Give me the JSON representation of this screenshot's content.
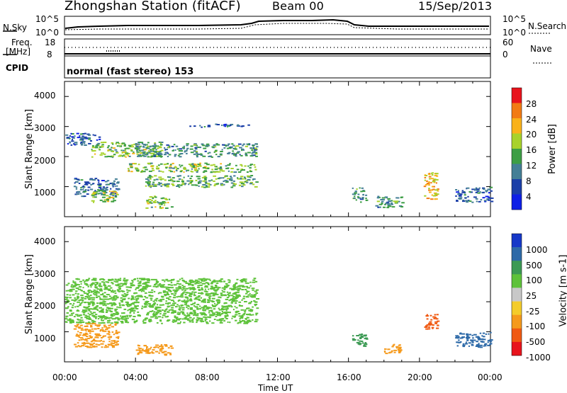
{
  "header": {
    "title": "Zhongshan Station (fitACF)",
    "beam": "Beam 00",
    "date": "15/Sep/2013"
  },
  "top_panel": {
    "left_label": "N.Sky",
    "right_label": "N.Search",
    "left_ticks": [
      "10^5",
      "10^0"
    ],
    "right_ticks": [
      "10^5",
      "10^0"
    ]
  },
  "freq_panel": {
    "left_label_1": "Freq.",
    "left_label_2": "[MHz]",
    "right_label": "Nave",
    "left_ticks": [
      "18",
      "8"
    ],
    "right_ticks": [
      "60",
      "0"
    ]
  },
  "cpid": {
    "label": "CPID",
    "value": "normal (fast stereo) 153"
  },
  "axes": {
    "ylabel": "Slant Range [km]",
    "xlabel": "Time UT",
    "yticks": [
      "4000",
      "3000",
      "2000",
      "1000"
    ],
    "xticks": [
      "00:00",
      "04:00",
      "08:00",
      "12:00",
      "16:00",
      "20:00",
      "00:00"
    ]
  },
  "power_scale": {
    "label": "Power [dB]",
    "ticks": [
      "28",
      "24",
      "20",
      "16",
      "12",
      "8",
      "4"
    ],
    "colors": [
      "#e8131c",
      "#f27b14",
      "#f9b21a",
      "#a8d22b",
      "#3d9e45",
      "#447f96",
      "#1b3fa8",
      "#0e1fe6"
    ]
  },
  "velocity_scale": {
    "label": "Velocity [m s-1]",
    "ticks": [
      "1000",
      "500",
      "100",
      "25",
      "-25",
      "-100",
      "-500",
      "-1000"
    ],
    "colors": [
      "#1638c8",
      "#2e6aa8",
      "#3c9a54",
      "#5ec23a",
      "#c8c8c8",
      "#f4cc2a",
      "#f59a1c",
      "#f05a12",
      "#e8131c"
    ]
  },
  "chart_data": {
    "type": "heatmap",
    "x_range": [
      "00:00",
      "24:00"
    ],
    "y_range_km": [
      0,
      4500
    ],
    "power_patches": [
      {
        "t0": 0.0,
        "t1": 2.0,
        "r0": 2400,
        "r1": 2800,
        "level": 8
      },
      {
        "t0": 1.5,
        "t1": 5.5,
        "r0": 2000,
        "r1": 2500,
        "level": 16
      },
      {
        "t0": 4.0,
        "t1": 10.8,
        "r0": 2000,
        "r1": 2450,
        "level": 12
      },
      {
        "t0": 3.5,
        "t1": 10.8,
        "r0": 1500,
        "r1": 1800,
        "level": 16
      },
      {
        "t0": 4.5,
        "t1": 10.8,
        "r0": 1000,
        "r1": 1400,
        "level": 14
      },
      {
        "t0": 0.5,
        "t1": 3.0,
        "r0": 700,
        "r1": 1300,
        "level": 8
      },
      {
        "t0": 1.5,
        "t1": 3.0,
        "r0": 500,
        "r1": 900,
        "level": 18
      },
      {
        "t0": 4.5,
        "t1": 6.0,
        "r0": 300,
        "r1": 700,
        "level": 16
      },
      {
        "t0": 7.0,
        "t1": 10.5,
        "r0": 3000,
        "r1": 3100,
        "level": 8
      },
      {
        "t0": 16.2,
        "t1": 17.0,
        "r0": 500,
        "r1": 1000,
        "level": 12
      },
      {
        "t0": 17.5,
        "t1": 19.0,
        "r0": 300,
        "r1": 700,
        "level": 12
      },
      {
        "t0": 20.2,
        "t1": 21.0,
        "r0": 600,
        "r1": 1500,
        "level": 22
      },
      {
        "t0": 22.0,
        "t1": 24.0,
        "r0": 500,
        "r1": 1000,
        "level": 8
      }
    ],
    "velocity_patches": [
      {
        "t0": 0.0,
        "t1": 10.8,
        "r0": 1300,
        "r1": 2800,
        "level": 25
      },
      {
        "t0": 0.5,
        "t1": 3.0,
        "r0": 500,
        "r1": 1300,
        "level": -100
      },
      {
        "t0": 4.0,
        "t1": 6.0,
        "r0": 250,
        "r1": 600,
        "level": -100
      },
      {
        "t0": 16.2,
        "t1": 17.0,
        "r0": 500,
        "r1": 1000,
        "level": 100
      },
      {
        "t0": 18.0,
        "t1": 19.0,
        "r0": 300,
        "r1": 600,
        "level": -100
      },
      {
        "t0": 20.2,
        "t1": 21.0,
        "r0": 1100,
        "r1": 1600,
        "level": -500
      },
      {
        "t0": 22.0,
        "t1": 24.0,
        "r0": 500,
        "r1": 1000,
        "level": 500
      }
    ]
  }
}
